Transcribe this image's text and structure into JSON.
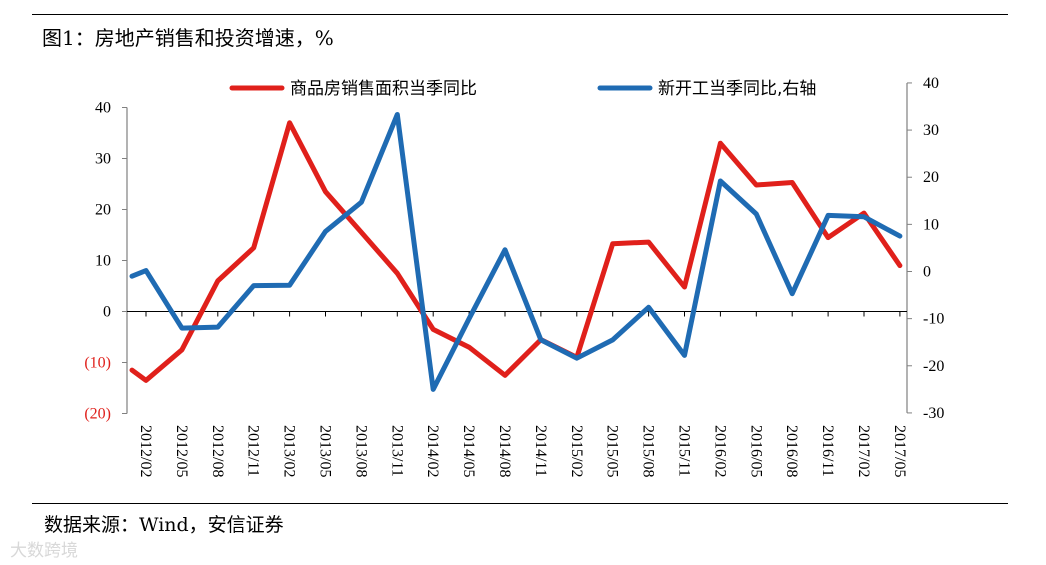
{
  "title": "图1：房地产销售和投资增速，%",
  "source": "数据来源：Wind，安信证券",
  "watermark": "大数跨境",
  "chart_data": {
    "type": "line",
    "categories": [
      "2012/02",
      "2012/05",
      "2012/08",
      "2012/11",
      "2013/02",
      "2013/05",
      "2013/08",
      "2013/11",
      "2014/02",
      "2014/05",
      "2014/08",
      "2014/11",
      "2015/02",
      "2015/05",
      "2015/08",
      "2015/11",
      "2016/02",
      "2016/05",
      "2016/08",
      "2016/11",
      "2017/02",
      "2017/05"
    ],
    "x_tick_labels": [
      "2012/02",
      "2012/05",
      "2012/08",
      "2012/11",
      "2013/02",
      "2013/05",
      "2013/08",
      "2013/11",
      "2014/02",
      "2014/05",
      "2014/08",
      "2014/11",
      "2015/02",
      "2015/05",
      "2015/08",
      "2015/11",
      "2016/02",
      "2016/05",
      "2016/08",
      "2016/11",
      "2017/02",
      "2017/05"
    ],
    "left_axis": {
      "ylim": [
        -20,
        45
      ],
      "ticks": [
        40,
        30,
        20,
        10,
        0,
        -10,
        -20
      ],
      "tick_labels": [
        "40",
        "30",
        "20",
        "10",
        "0",
        "(10)",
        "(20)"
      ],
      "negative_label_color": "#e0201b"
    },
    "right_axis": {
      "ylim": [
        -30,
        40
      ],
      "ticks": [
        40,
        30,
        20,
        10,
        0,
        -10,
        -20,
        -30
      ],
      "tick_labels": [
        "40",
        "30",
        "20",
        "10",
        "0",
        "-10",
        "-20",
        "-30"
      ]
    },
    "legend_position": "top",
    "grid": false,
    "series": [
      {
        "name": "商品房销售面积当季同比",
        "axis": "left",
        "color": "#e0201b",
        "x": [
          -0.3,
          0,
          1,
          2,
          3,
          4,
          5,
          6,
          7,
          8,
          9,
          10,
          11,
          12,
          13,
          14,
          15,
          16,
          17,
          18,
          19,
          20,
          21
        ],
        "values": [
          -11.5,
          -13.5,
          -7.5,
          6,
          12.5,
          37,
          23.5,
          15.5,
          7.5,
          -3.5,
          -7,
          -12.5,
          -5.5,
          -9,
          13.3,
          13.6,
          4.8,
          33,
          24.8,
          25.3,
          14.5,
          19.3,
          9
        ]
      },
      {
        "name": "新开工当季同比,右轴",
        "axis": "right",
        "color": "#1f6bb3",
        "x": [
          -0.3,
          0,
          1,
          2,
          3,
          4,
          5,
          6,
          7,
          8,
          9,
          10,
          11,
          12,
          13,
          14,
          15,
          16,
          17,
          18,
          19,
          20,
          21
        ],
        "values": [
          -1,
          0.2,
          -12,
          -11.8,
          -3,
          -2.9,
          8.5,
          14.7,
          33.3,
          -25,
          -10,
          4.6,
          -14.5,
          -18.4,
          -14.5,
          -7.6,
          -17.8,
          19.2,
          12.2,
          -4.7,
          11.9,
          11.6,
          7.5
        ]
      }
    ]
  }
}
